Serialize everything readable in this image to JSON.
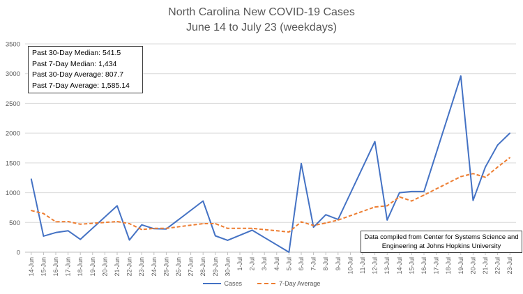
{
  "chart_data": {
    "type": "line",
    "title": "North Carolina New COVID-19 Cases",
    "subtitle": "June 14 to July 23 (weekdays)",
    "xlabel": "",
    "ylabel": "",
    "ylim": [
      0,
      3500
    ],
    "yticks": [
      0,
      500,
      1000,
      1500,
      2000,
      2500,
      3000,
      3500
    ],
    "grid": true,
    "legend": "bottom",
    "categories": [
      "14-Jun",
      "15-Jun",
      "16-Jun",
      "17-Jun",
      "18-Jun",
      "19-Jun",
      "20-Jun",
      "21-Jun",
      "22-Jun",
      "23-Jun",
      "24-Jun",
      "25-Jun",
      "26-Jun",
      "27-Jun",
      "28-Jun",
      "29-Jun",
      "30-Jun",
      "1-Jul",
      "2-Jul",
      "3-Jul",
      "4-Jul",
      "5-Jul",
      "6-Jul",
      "7-Jul",
      "8-Jul",
      "9-Jul",
      "10-Jul",
      "11-Jul",
      "12-Jul",
      "13-Jul",
      "14-Jul",
      "15-Jul",
      "16-Jul",
      "17-Jul",
      "18-Jul",
      "19-Jul",
      "20-Jul",
      "21-Jul",
      "22-Jul",
      "23-Jul"
    ],
    "series": [
      {
        "name": "Cases",
        "style": "solid",
        "color": "#4472C4",
        "values": [
          1230,
          270,
          330,
          360,
          215,
          null,
          null,
          780,
          205,
          460,
          395,
          390,
          null,
          null,
          860,
          275,
          200,
          null,
          370,
          null,
          null,
          0,
          1490,
          420,
          630,
          550,
          null,
          null,
          1860,
          540,
          1000,
          1020,
          1020,
          null,
          null,
          2960,
          870,
          1430,
          1800,
          2000
        ]
      },
      {
        "name": "7-Day Average",
        "style": "dashed",
        "color": "#ED7D31",
        "values": [
          700,
          650,
          510,
          515,
          470,
          null,
          null,
          515,
          480,
          380,
          400,
          400,
          null,
          null,
          480,
          480,
          400,
          null,
          400,
          null,
          null,
          340,
          510,
          450,
          490,
          540,
          null,
          null,
          760,
          780,
          930,
          860,
          960,
          null,
          null,
          1270,
          1320,
          1260,
          1430,
          1590
        ]
      }
    ],
    "annotations": {
      "stats": [
        "Past 30-Day Median: 541.5",
        "Past 7-Day Median: 1,434",
        "Past 30-Day Average: 807.7",
        "Past 7-Day Average: 1,585.14"
      ],
      "source_line1": "Data compiled from Center for Systems Science and",
      "source_line2": "Engineering at Johns Hopkins University"
    }
  }
}
